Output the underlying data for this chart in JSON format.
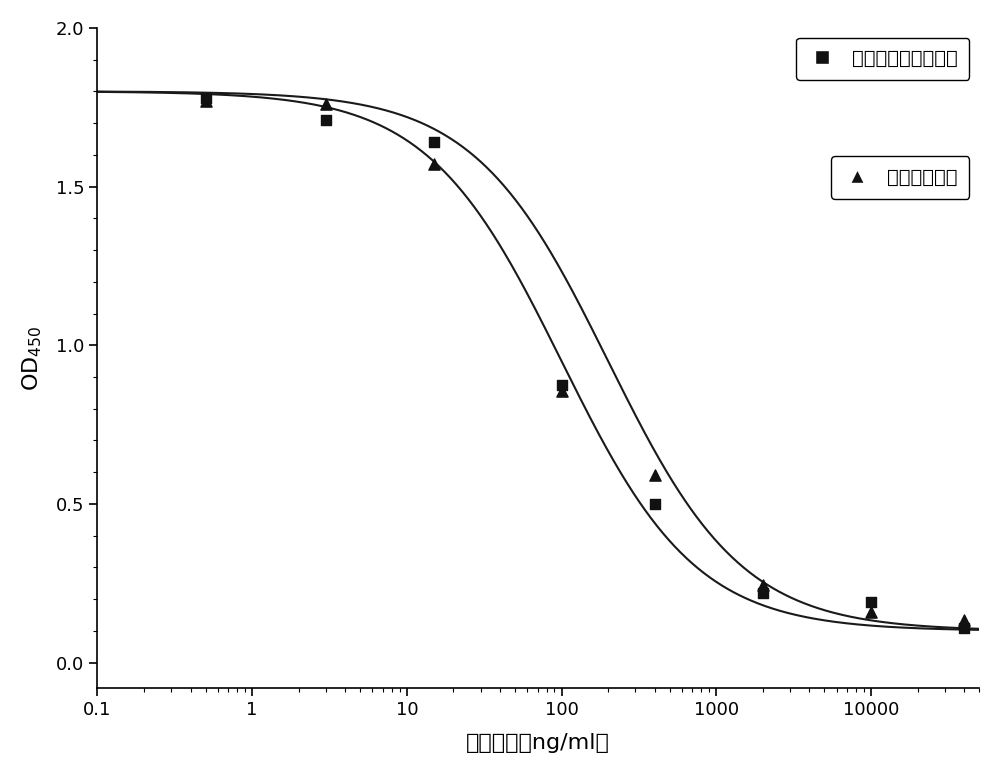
{
  "series1_name": "重组人胰岛素标准品",
  "series2_name": "重组人胰岛素",
  "series1_x": [
    0.5,
    3,
    15,
    100,
    400,
    2000,
    10000,
    40000
  ],
  "series1_y": [
    1.78,
    1.71,
    1.64,
    0.875,
    0.5,
    0.22,
    0.19,
    0.11
  ],
  "series2_x": [
    0.5,
    3,
    15,
    100,
    400,
    2000,
    10000,
    40000
  ],
  "series2_y": [
    1.77,
    1.76,
    1.57,
    0.855,
    0.59,
    0.245,
    0.16,
    0.135
  ],
  "xlabel": "浓度对数（ng/ml）",
  "ylabel_math": "$\\mathregular{OD_{450}}$",
  "xlim": [
    0.1,
    50000
  ],
  "ylim": [
    -0.08,
    2.0
  ],
  "yticks": [
    0.0,
    0.5,
    1.0,
    1.5,
    2.0
  ],
  "xtick_vals": [
    0.1,
    1,
    10,
    100,
    1000,
    10000
  ],
  "xtick_labels": [
    "0.1",
    "1",
    "10",
    "100",
    "1000",
    "10000"
  ],
  "background_color": "#ffffff",
  "line_color": "#1a1a1a",
  "marker_color": "#111111",
  "figure_width": 10.0,
  "figure_height": 7.74
}
